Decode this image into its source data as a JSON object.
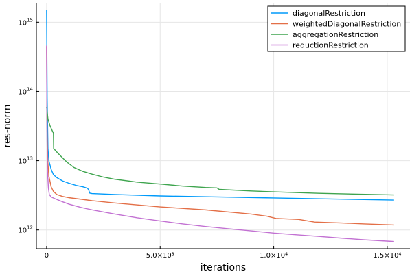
{
  "chart_data": {
    "type": "line",
    "title": "",
    "xlabel": "iterations",
    "ylabel": "res-norm",
    "xlim": [
      -450,
      16000
    ],
    "ylim_log10": [
      11.73,
      15.28
    ],
    "y_scale": "log10",
    "grid": true,
    "legend_position": "top-right",
    "x_ticks": [
      {
        "value": 0,
        "label": "0"
      },
      {
        "value": 5000,
        "label": "5.0×10³"
      },
      {
        "value": 10000,
        "label": "1.0×10⁴"
      },
      {
        "value": 15000,
        "label": "1.5×10⁴"
      }
    ],
    "y_ticks": [
      {
        "exp": 12,
        "base": "10",
        "sup": "12"
      },
      {
        "exp": 13,
        "base": "10",
        "sup": "13"
      },
      {
        "exp": 14,
        "base": "10",
        "sup": "14"
      },
      {
        "exp": 15,
        "base": "10",
        "sup": "15"
      }
    ],
    "series": [
      {
        "name": "diagonalRestriction",
        "color": "#009AFA",
        "points": [
          [
            0,
            1500000000000000.0
          ],
          [
            25,
            80000000000000.0
          ],
          [
            60,
            15000000000000.0
          ],
          [
            100,
            10000000000000.0
          ],
          [
            200,
            7500000000000.0
          ],
          [
            300,
            6300000000000.0
          ],
          [
            450,
            5700000000000.0
          ],
          [
            700,
            5100000000000.0
          ],
          [
            1000,
            4700000000000.0
          ],
          [
            1300,
            4400000000000.0
          ],
          [
            1600,
            4200000000000.0
          ],
          [
            1800,
            4000000000000.0
          ],
          [
            1850,
            3800000000000.0
          ],
          [
            1900,
            3400000000000.0
          ],
          [
            2000,
            3350000000000.0
          ],
          [
            3000,
            3250000000000.0
          ],
          [
            5000,
            3100000000000.0
          ],
          [
            7500,
            3000000000000.0
          ],
          [
            10000,
            2900000000000.0
          ],
          [
            12500,
            2800000000000.0
          ],
          [
            15300,
            2700000000000.0
          ]
        ]
      },
      {
        "name": "weightedDiagonalRestriction",
        "color": "#E36F47",
        "points": [
          [
            0,
            450000000000000.0
          ],
          [
            20,
            30000000000000.0
          ],
          [
            50,
            10000000000000.0
          ],
          [
            100,
            6000000000000.0
          ],
          [
            200,
            4200000000000.0
          ],
          [
            300,
            3600000000000.0
          ],
          [
            450,
            3250000000000.0
          ],
          [
            700,
            3050000000000.0
          ],
          [
            1000,
            2920000000000.0
          ],
          [
            2000,
            2650000000000.0
          ],
          [
            3000,
            2450000000000.0
          ],
          [
            5000,
            2150000000000.0
          ],
          [
            7000,
            1950000000000.0
          ],
          [
            9000,
            1700000000000.0
          ],
          [
            9700,
            1580000000000.0
          ],
          [
            10100,
            1470000000000.0
          ],
          [
            11100,
            1420000000000.0
          ],
          [
            11800,
            1300000000000.0
          ],
          [
            13000,
            1260000000000.0
          ],
          [
            14000,
            1220000000000.0
          ],
          [
            15300,
            1180000000000.0
          ]
        ]
      },
      {
        "name": "aggregationRestriction",
        "color": "#3EA44E",
        "points": [
          [
            0,
            60000000000000.0
          ],
          [
            60,
            40000000000000.0
          ],
          [
            150,
            32000000000000.0
          ],
          [
            250,
            27000000000000.0
          ],
          [
            300,
            25000000000000.0
          ],
          [
            310,
            15000000000000.0
          ],
          [
            500,
            12800000000000.0
          ],
          [
            700,
            11000000000000.0
          ],
          [
            900,
            9500000000000.0
          ],
          [
            1200,
            8000000000000.0
          ],
          [
            1600,
            7000000000000.0
          ],
          [
            2000,
            6400000000000.0
          ],
          [
            2500,
            5800000000000.0
          ],
          [
            3000,
            5400000000000.0
          ],
          [
            4000,
            4900000000000.0
          ],
          [
            5000,
            4600000000000.0
          ],
          [
            6000,
            4300000000000.0
          ],
          [
            7000,
            4100000000000.0
          ],
          [
            7500,
            4050000000000.0
          ],
          [
            7600,
            3850000000000.0
          ],
          [
            9000,
            3650000000000.0
          ],
          [
            10000,
            3550000000000.0
          ],
          [
            12000,
            3380000000000.0
          ],
          [
            15300,
            3200000000000.0
          ]
        ]
      },
      {
        "name": "reductionRestriction",
        "color": "#C271D2",
        "points": [
          [
            0,
            460000000000000.0
          ],
          [
            20,
            20000000000000.0
          ],
          [
            40,
            7000000000000.0
          ],
          [
            80,
            4000000000000.0
          ],
          [
            120,
            3250000000000.0
          ],
          [
            200,
            3000000000000.0
          ],
          [
            400,
            2800000000000.0
          ],
          [
            700,
            2550000000000.0
          ],
          [
            1000,
            2350000000000.0
          ],
          [
            1500,
            2120000000000.0
          ],
          [
            2000,
            1950000000000.0
          ],
          [
            3000,
            1700000000000.0
          ],
          [
            4000,
            1500000000000.0
          ],
          [
            5000,
            1350000000000.0
          ],
          [
            6000,
            1220000000000.0
          ],
          [
            7000,
            1120000000000.0
          ],
          [
            8000,
            1040000000000.0
          ],
          [
            9000,
            970000000000.0
          ],
          [
            10000,
            900000000000.0
          ],
          [
            11000,
            850000000000.0
          ],
          [
            12000,
            805000000000.0
          ],
          [
            13000,
            760000000000.0
          ],
          [
            14000,
            720000000000.0
          ],
          [
            15300,
            680000000000.0
          ]
        ]
      }
    ]
  }
}
